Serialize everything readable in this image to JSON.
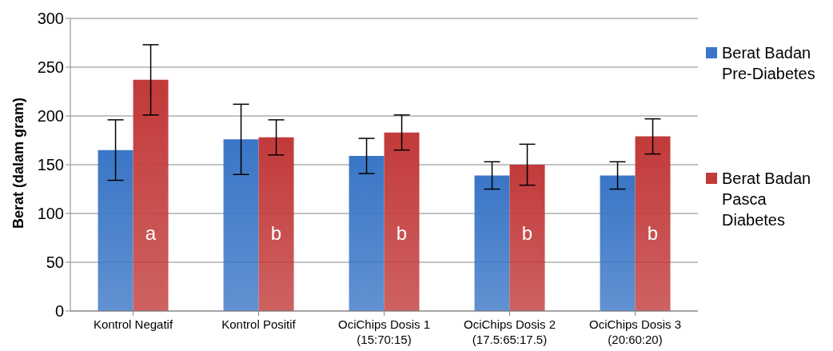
{
  "chart_data": {
    "type": "bar",
    "ylabel": "Berat (dalam gram)",
    "categories": [
      "Kontrol Negatif",
      "Kontrol Positif",
      "OciChips Dosis 1\n(15:70:15)",
      "OciChips Dosis 2\n(17.5:65:17.5)",
      "OciChips Dosis 3\n(20:60:20)"
    ],
    "series": [
      {
        "name": "Berat Badan Pre-Diabetes",
        "color": "#3a76c6",
        "values": [
          165,
          176,
          159,
          139,
          139
        ],
        "errors": [
          31,
          36,
          18,
          14,
          14
        ]
      },
      {
        "name": "Berat Badan Pasca Diabetes",
        "color": "#c23a3a",
        "values": [
          237,
          178,
          183,
          150,
          179
        ],
        "errors": [
          36,
          18,
          18,
          21,
          18
        ]
      }
    ],
    "annotations": [
      {
        "text": "a",
        "x": "Kontrol Negatif",
        "y": 80
      },
      {
        "text": "b",
        "x": "Kontrol Positif",
        "y": 80
      },
      {
        "text": "b",
        "x": "OciChips Dosis 1\n(15:70:15)",
        "y": 80
      },
      {
        "text": "b",
        "x": "OciChips Dosis 2\n(17.5:65:17.5)",
        "y": 80
      },
      {
        "text": "b",
        "x": "OciChips Dosis 3\n(20:60:20)",
        "y": 80
      }
    ],
    "ylim": [
      0,
      300
    ],
    "yticks": [
      0,
      50,
      100,
      150,
      200,
      250,
      300
    ],
    "grid": "y",
    "legend": "right"
  }
}
